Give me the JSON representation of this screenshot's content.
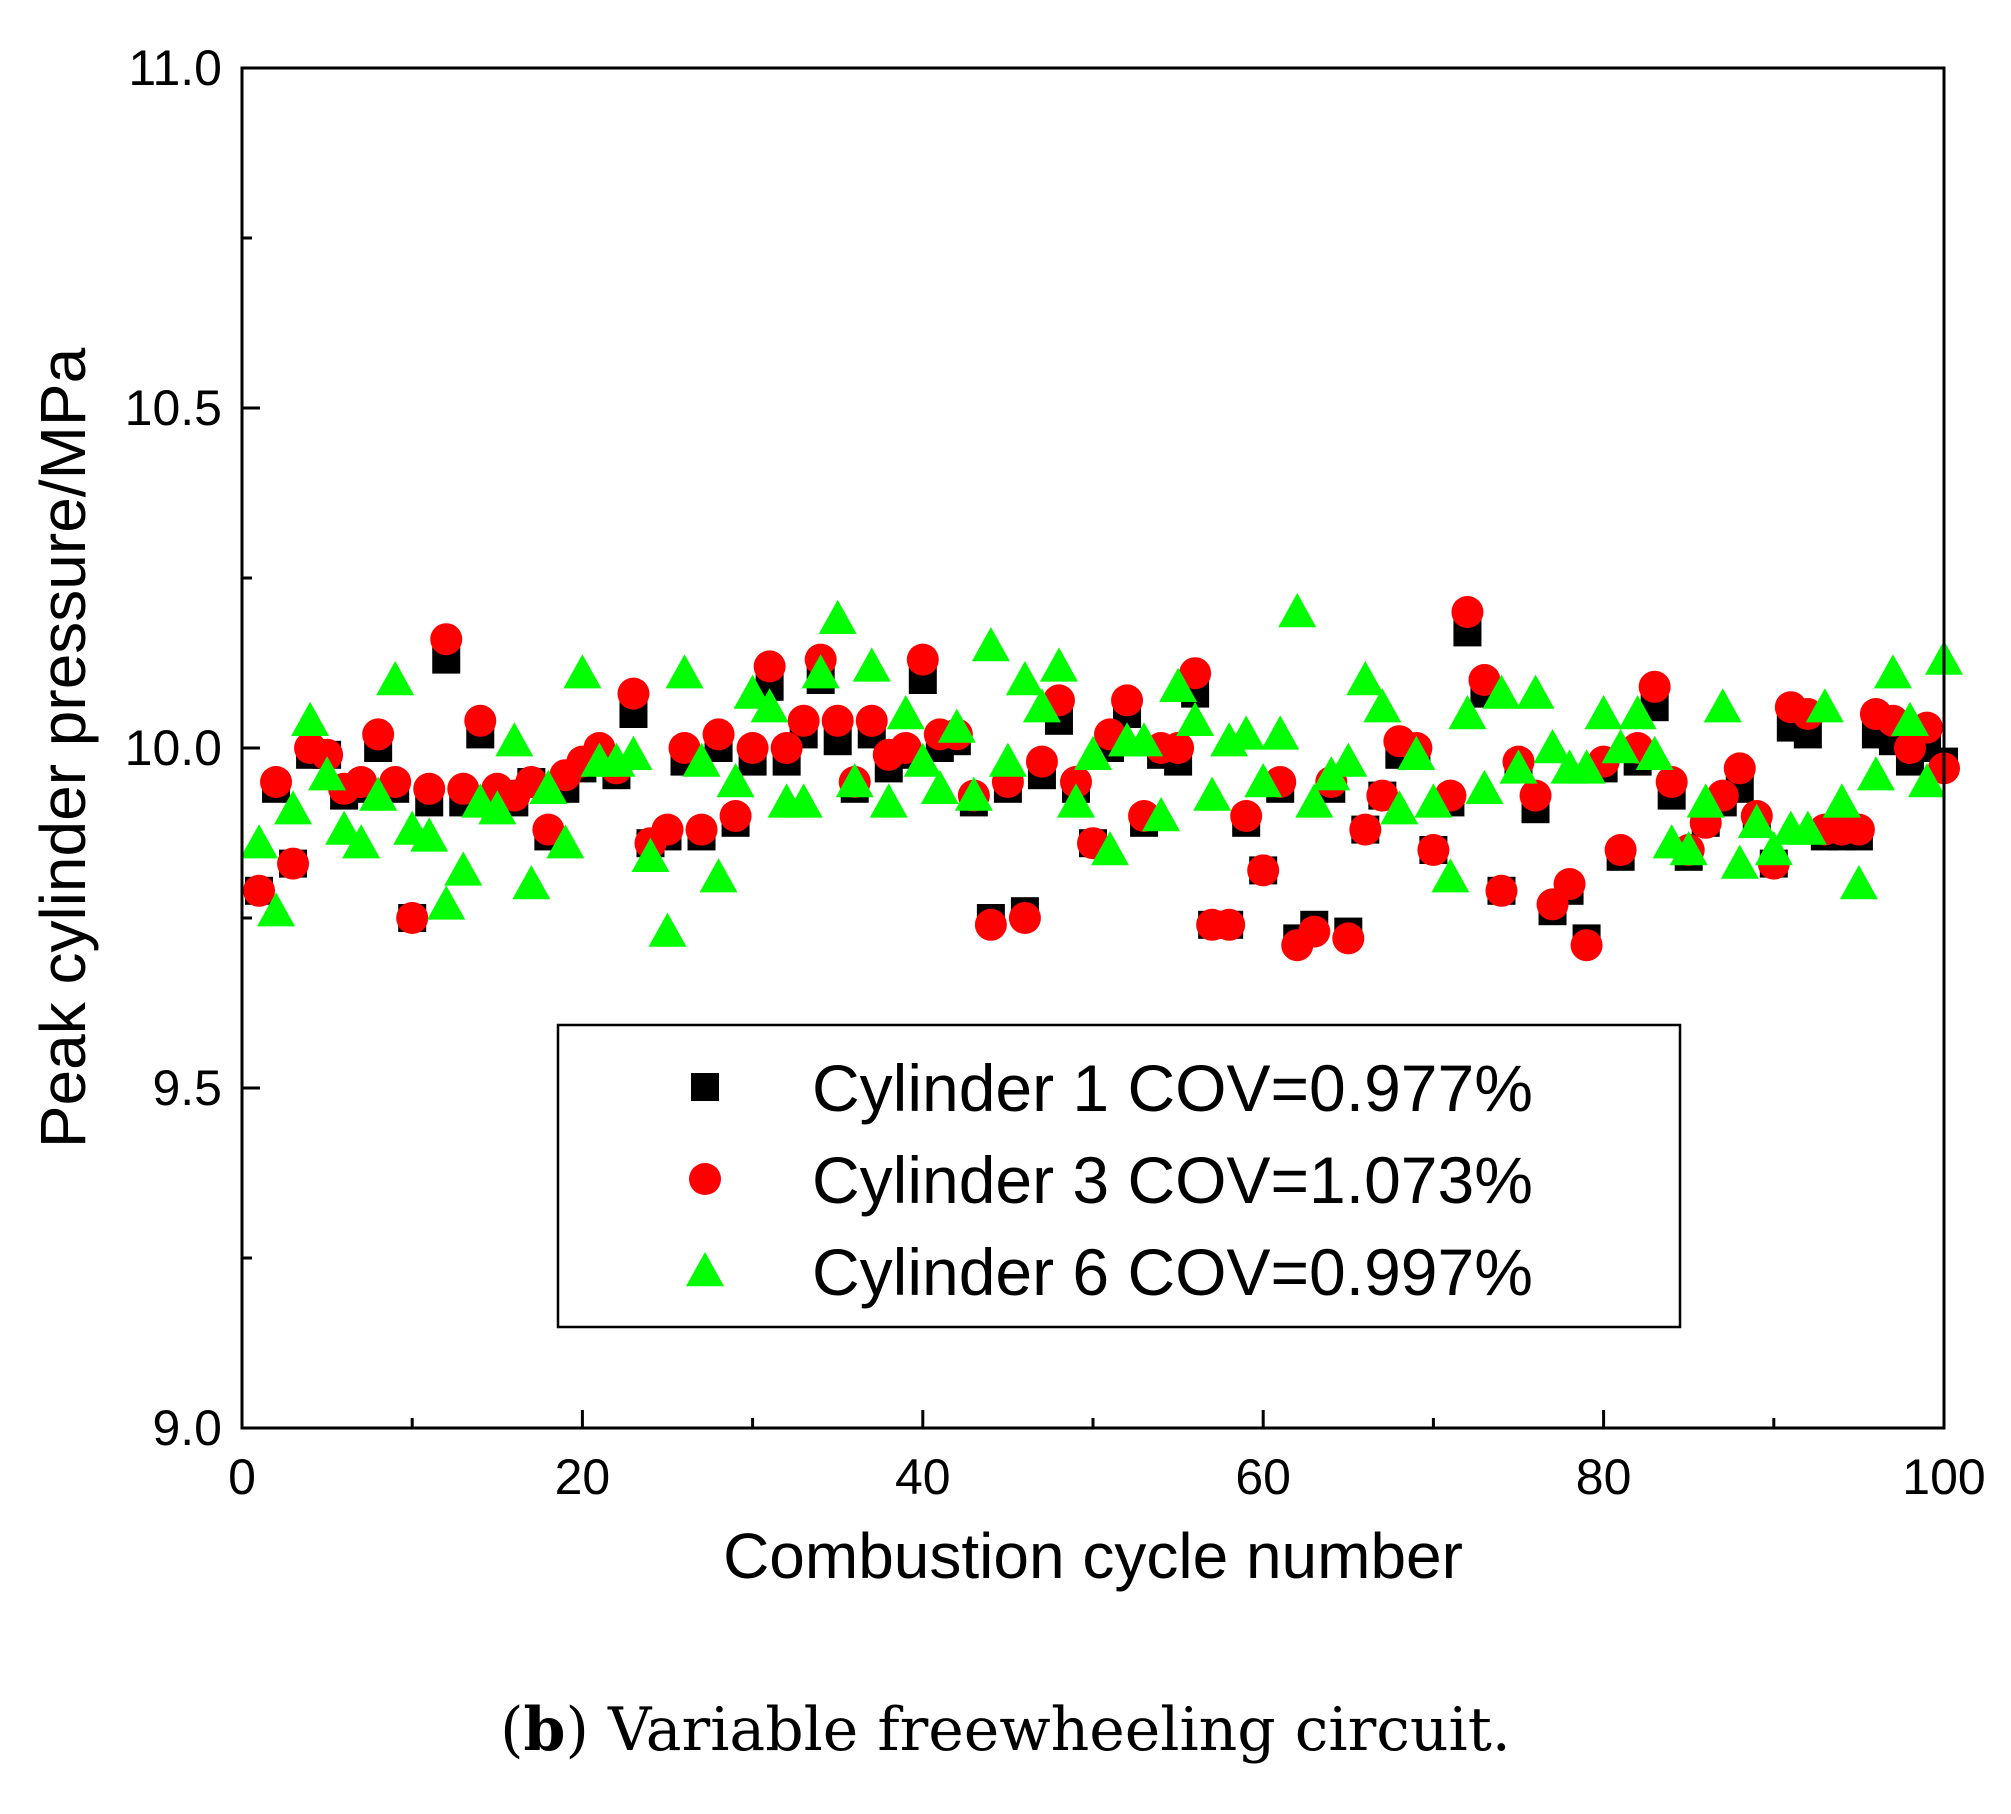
{
  "caption": {
    "label": "b",
    "text": "Variable freewheeling circuit."
  },
  "chart_data": {
    "type": "scatter",
    "xlabel": "Combustion cycle number",
    "ylabel": "Peak cylinder pressure/MPa",
    "xlim": [
      0,
      100
    ],
    "ylim": [
      9.0,
      11.0
    ],
    "xticks": [
      0,
      20,
      40,
      60,
      80,
      100
    ],
    "yticks": [
      9.0,
      9.5,
      10.0,
      10.5,
      11.0
    ],
    "grid": false,
    "legend_position": "lower-center inside plot",
    "series": [
      {
        "name": "Cylinder 1 COV=0.977%",
        "marker": "square",
        "color": "#000000",
        "x": [
          1,
          2,
          3,
          4,
          5,
          6,
          7,
          8,
          9,
          10,
          11,
          12,
          13,
          14,
          15,
          16,
          17,
          18,
          19,
          20,
          21,
          22,
          23,
          24,
          25,
          26,
          27,
          28,
          29,
          30,
          31,
          32,
          33,
          34,
          35,
          36,
          37,
          38,
          39,
          40,
          41,
          42,
          43,
          44,
          45,
          46,
          47,
          48,
          49,
          50,
          51,
          52,
          53,
          54,
          55,
          56,
          57,
          58,
          59,
          60,
          61,
          62,
          63,
          64,
          65,
          66,
          67,
          68,
          69,
          70,
          71,
          72,
          73,
          74,
          75,
          76,
          77,
          78,
          79,
          80,
          81,
          82,
          83,
          84,
          85,
          86,
          87,
          88,
          89,
          90,
          91,
          92,
          93,
          94,
          95,
          96,
          97,
          98,
          99,
          100
        ],
        "y": [
          9.79,
          9.94,
          9.83,
          9.99,
          9.99,
          9.93,
          9.94,
          10.0,
          9.94,
          9.75,
          9.92,
          10.13,
          9.92,
          10.02,
          9.93,
          9.92,
          9.95,
          9.87,
          9.94,
          9.97,
          9.99,
          9.96,
          10.05,
          9.86,
          9.87,
          9.98,
          9.87,
          10.0,
          9.89,
          9.98,
          10.09,
          9.98,
          10.02,
          10.1,
          10.01,
          9.94,
          10.02,
          9.97,
          9.99,
          10.1,
          10.0,
          10.01,
          9.92,
          9.75,
          9.94,
          9.76,
          9.96,
          10.04,
          9.94,
          9.86,
          10.0,
          10.05,
          9.89,
          9.99,
          9.98,
          10.08,
          9.74,
          9.74,
          9.89,
          9.82,
          9.94,
          9.72,
          9.74,
          9.94,
          9.73,
          9.88,
          9.93,
          9.99,
          9.99,
          9.85,
          9.92,
          10.17,
          10.08,
          9.79,
          9.97,
          9.91,
          9.76,
          9.79,
          9.72,
          9.97,
          9.84,
          9.98,
          10.06,
          9.93,
          9.84,
          9.89,
          9.92,
          9.94,
          9.89,
          9.83,
          10.03,
          10.02,
          9.87,
          9.87,
          9.87,
          10.02,
          10.01,
          9.98,
          10.0,
          9.98
        ]
      },
      {
        "name": "Cylinder 3 COV=1.073%",
        "marker": "circle",
        "color": "#ff0000",
        "x": [
          1,
          2,
          3,
          4,
          5,
          6,
          7,
          8,
          9,
          10,
          11,
          12,
          13,
          14,
          15,
          16,
          17,
          18,
          19,
          20,
          21,
          22,
          23,
          24,
          25,
          26,
          27,
          28,
          29,
          30,
          31,
          32,
          33,
          34,
          35,
          36,
          37,
          38,
          39,
          40,
          41,
          42,
          43,
          44,
          45,
          46,
          47,
          48,
          49,
          50,
          51,
          52,
          53,
          54,
          55,
          56,
          57,
          58,
          59,
          60,
          61,
          62,
          63,
          64,
          65,
          66,
          67,
          68,
          69,
          70,
          71,
          72,
          73,
          74,
          75,
          76,
          77,
          78,
          79,
          80,
          81,
          82,
          83,
          84,
          85,
          86,
          87,
          88,
          89,
          90,
          91,
          92,
          93,
          94,
          95,
          96,
          97,
          98,
          99,
          100
        ],
        "y": [
          9.79,
          9.95,
          9.83,
          10.0,
          9.99,
          9.94,
          9.95,
          10.02,
          9.95,
          9.75,
          9.94,
          10.16,
          9.94,
          10.04,
          9.94,
          9.93,
          9.95,
          9.88,
          9.96,
          9.98,
          10.0,
          9.97,
          10.08,
          9.86,
          9.88,
          10.0,
          9.88,
          10.02,
          9.9,
          10.0,
          10.12,
          10.0,
          10.04,
          10.13,
          10.04,
          9.95,
          10.04,
          9.99,
          10.0,
          10.13,
          10.02,
          10.02,
          9.93,
          9.74,
          9.95,
          9.75,
          9.98,
          10.07,
          9.95,
          9.86,
          10.02,
          10.07,
          9.9,
          10.0,
          10.0,
          10.11,
          9.74,
          9.74,
          9.9,
          9.82,
          9.95,
          9.71,
          9.73,
          9.95,
          9.72,
          9.88,
          9.93,
          10.01,
          10.0,
          9.85,
          9.93,
          10.2,
          10.1,
          9.79,
          9.98,
          9.93,
          9.77,
          9.8,
          9.71,
          9.98,
          9.85,
          10.0,
          10.09,
          9.95,
          9.85,
          9.89,
          9.93,
          9.97,
          9.9,
          9.83,
          10.06,
          10.05,
          9.88,
          9.88,
          9.88,
          10.05,
          10.04,
          10.0,
          10.03,
          9.97
        ]
      },
      {
        "name": "Cylinder 6 COV=0.997%",
        "marker": "triangle",
        "color": "#00ff00",
        "x": [
          1,
          2,
          3,
          4,
          5,
          6,
          7,
          8,
          9,
          10,
          11,
          12,
          13,
          14,
          15,
          16,
          17,
          18,
          19,
          20,
          21,
          22,
          23,
          24,
          25,
          26,
          27,
          28,
          29,
          30,
          31,
          32,
          33,
          34,
          35,
          36,
          37,
          38,
          39,
          40,
          41,
          42,
          43,
          44,
          45,
          46,
          47,
          48,
          49,
          50,
          51,
          52,
          53,
          54,
          55,
          56,
          57,
          58,
          59,
          60,
          61,
          62,
          63,
          64,
          65,
          66,
          67,
          68,
          69,
          70,
          71,
          72,
          73,
          74,
          75,
          76,
          77,
          78,
          79,
          80,
          81,
          82,
          83,
          84,
          85,
          86,
          87,
          88,
          89,
          90,
          91,
          92,
          93,
          94,
          95,
          96,
          97,
          98,
          99,
          100
        ],
        "y": [
          9.86,
          9.76,
          9.91,
          10.04,
          9.96,
          9.88,
          9.86,
          9.93,
          10.1,
          9.88,
          9.87,
          9.77,
          9.82,
          9.92,
          9.91,
          10.01,
          9.8,
          9.94,
          9.86,
          10.11,
          9.98,
          9.98,
          9.99,
          9.84,
          9.73,
          10.11,
          9.98,
          9.81,
          9.95,
          10.08,
          10.06,
          9.92,
          9.92,
          10.11,
          10.19,
          9.95,
          10.12,
          9.92,
          10.05,
          9.98,
          9.94,
          10.03,
          9.93,
          10.15,
          9.98,
          10.1,
          10.06,
          10.12,
          9.92,
          9.99,
          9.85,
          10.01,
          10.01,
          9.9,
          10.09,
          10.04,
          9.93,
          10.01,
          10.02,
          9.95,
          10.02,
          10.2,
          9.92,
          9.96,
          9.98,
          10.1,
          10.06,
          9.91,
          9.99,
          9.92,
          9.81,
          10.05,
          9.94,
          10.08,
          9.97,
          10.08,
          10.0,
          9.97,
          9.97,
          10.05,
          10.0,
          10.05,
          9.99,
          9.86,
          9.85,
          9.92,
          10.06,
          9.83,
          9.89,
          9.85,
          9.88,
          9.88,
          10.06,
          9.92,
          9.8,
          9.96,
          10.11,
          10.04,
          9.95,
          10.13
        ]
      }
    ]
  }
}
